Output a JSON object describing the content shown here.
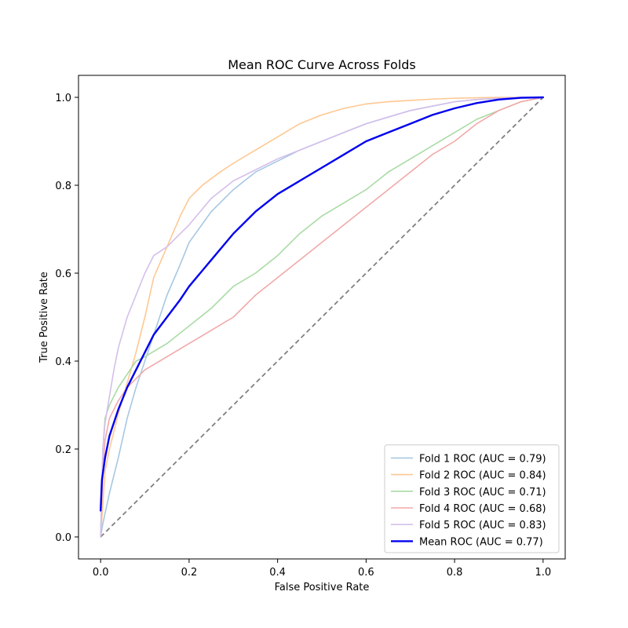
{
  "chart_data": {
    "type": "line",
    "title": "Mean ROC Curve Across Folds",
    "xlabel": "False Positive Rate",
    "ylabel": "True Positive Rate",
    "xlim": [
      -0.05,
      1.05
    ],
    "ylim": [
      -0.05,
      1.05
    ],
    "xticks": [
      0.0,
      0.2,
      0.4,
      0.6,
      0.8,
      1.0
    ],
    "yticks": [
      0.0,
      0.2,
      0.4,
      0.6,
      0.8,
      1.0
    ],
    "xtick_labels": [
      "0.0",
      "0.2",
      "0.4",
      "0.6",
      "0.8",
      "1.0"
    ],
    "ytick_labels": [
      "0.0",
      "0.2",
      "0.4",
      "0.6",
      "0.8",
      "1.0"
    ],
    "grid": false,
    "legend_position": "bottom-right",
    "chance_line": {
      "x": [
        0,
        1
      ],
      "y": [
        0,
        1
      ],
      "color": "#808080",
      "style": "dashed"
    },
    "series": [
      {
        "name": "Fold 1 ROC (AUC = 0.79)",
        "color": "#a6c8e3",
        "x": [
          0,
          0.005,
          0.02,
          0.04,
          0.06,
          0.08,
          0.1,
          0.12,
          0.15,
          0.18,
          0.2,
          0.25,
          0.3,
          0.35,
          0.4,
          0.45,
          0.5,
          0.55,
          0.6,
          0.65,
          0.7,
          0.75,
          0.8,
          0.85,
          0.9,
          0.95,
          1.0
        ],
        "y": [
          0,
          0.03,
          0.1,
          0.18,
          0.27,
          0.34,
          0.4,
          0.46,
          0.55,
          0.62,
          0.67,
          0.74,
          0.79,
          0.83,
          0.855,
          0.88,
          0.9,
          0.92,
          0.94,
          0.955,
          0.97,
          0.98,
          0.99,
          0.995,
          0.998,
          1.0,
          1.0
        ]
      },
      {
        "name": "Fold 2 ROC (AUC = 0.84)",
        "color": "#ffc892",
        "x": [
          0,
          0.01,
          0.02,
          0.04,
          0.06,
          0.08,
          0.1,
          0.12,
          0.15,
          0.18,
          0.2,
          0.23,
          0.27,
          0.3,
          0.35,
          0.4,
          0.45,
          0.5,
          0.55,
          0.6,
          0.65,
          0.7,
          0.75,
          0.8,
          0.85,
          0.9,
          0.95,
          1.0
        ],
        "y": [
          0,
          0.15,
          0.2,
          0.28,
          0.35,
          0.42,
          0.5,
          0.59,
          0.66,
          0.73,
          0.77,
          0.8,
          0.83,
          0.85,
          0.88,
          0.91,
          0.94,
          0.96,
          0.975,
          0.985,
          0.99,
          0.993,
          0.996,
          0.998,
          0.999,
          1.0,
          1.0,
          1.0
        ]
      },
      {
        "name": "Fold 3 ROC (AUC = 0.71)",
        "color": "#a9dba5",
        "x": [
          0,
          0.005,
          0.01,
          0.02,
          0.04,
          0.06,
          0.08,
          0.1,
          0.15,
          0.2,
          0.25,
          0.3,
          0.35,
          0.4,
          0.45,
          0.5,
          0.55,
          0.6,
          0.65,
          0.7,
          0.75,
          0.8,
          0.85,
          0.9,
          0.95,
          1.0
        ],
        "y": [
          0,
          0.2,
          0.27,
          0.3,
          0.34,
          0.37,
          0.4,
          0.41,
          0.44,
          0.48,
          0.52,
          0.57,
          0.6,
          0.64,
          0.69,
          0.73,
          0.76,
          0.79,
          0.83,
          0.86,
          0.89,
          0.92,
          0.95,
          0.97,
          0.99,
          1.0
        ]
      },
      {
        "name": "Fold 4 ROC (AUC = 0.68)",
        "color": "#f2a9a9",
        "x": [
          0,
          0.005,
          0.01,
          0.02,
          0.04,
          0.06,
          0.08,
          0.1,
          0.15,
          0.2,
          0.25,
          0.3,
          0.35,
          0.4,
          0.45,
          0.5,
          0.55,
          0.6,
          0.65,
          0.7,
          0.75,
          0.8,
          0.85,
          0.9,
          0.95,
          1.0
        ],
        "y": [
          0,
          0.15,
          0.22,
          0.27,
          0.31,
          0.34,
          0.36,
          0.38,
          0.41,
          0.44,
          0.47,
          0.5,
          0.55,
          0.59,
          0.63,
          0.67,
          0.71,
          0.75,
          0.79,
          0.83,
          0.87,
          0.9,
          0.94,
          0.97,
          0.99,
          1.0
        ]
      },
      {
        "name": "Fold 5 ROC (AUC = 0.83)",
        "color": "#d4bfea",
        "x": [
          0,
          0.005,
          0.01,
          0.02,
          0.03,
          0.04,
          0.06,
          0.08,
          0.1,
          0.12,
          0.15,
          0.18,
          0.2,
          0.25,
          0.3,
          0.35,
          0.4,
          0.45,
          0.5,
          0.55,
          0.6,
          0.65,
          0.7,
          0.75,
          0.8,
          0.85,
          0.9,
          0.95,
          1.0
        ],
        "y": [
          0,
          0.2,
          0.26,
          0.32,
          0.38,
          0.43,
          0.5,
          0.55,
          0.6,
          0.64,
          0.66,
          0.69,
          0.71,
          0.77,
          0.81,
          0.835,
          0.86,
          0.88,
          0.9,
          0.92,
          0.94,
          0.955,
          0.97,
          0.98,
          0.99,
          0.995,
          0.998,
          1.0,
          1.0
        ]
      },
      {
        "name": "Mean ROC (AUC = 0.77)",
        "color": "#0000ee",
        "bold": true,
        "x": [
          0,
          0.003,
          0.01,
          0.02,
          0.04,
          0.06,
          0.08,
          0.1,
          0.12,
          0.15,
          0.18,
          0.2,
          0.25,
          0.3,
          0.35,
          0.4,
          0.45,
          0.5,
          0.55,
          0.6,
          0.65,
          0.7,
          0.75,
          0.8,
          0.85,
          0.9,
          0.95,
          1.0
        ],
        "y": [
          0.06,
          0.13,
          0.18,
          0.23,
          0.29,
          0.34,
          0.38,
          0.42,
          0.46,
          0.5,
          0.54,
          0.57,
          0.63,
          0.69,
          0.74,
          0.78,
          0.81,
          0.84,
          0.87,
          0.9,
          0.92,
          0.94,
          0.96,
          0.975,
          0.987,
          0.995,
          0.999,
          1.0
        ]
      }
    ]
  }
}
